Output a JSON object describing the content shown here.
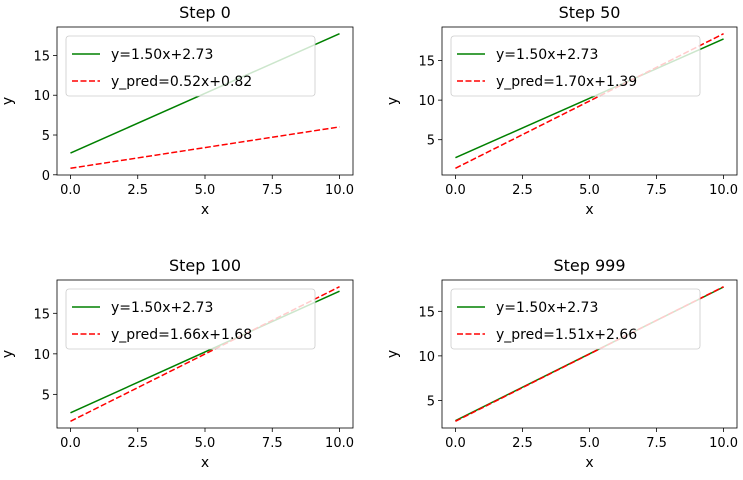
{
  "chart_data": [
    {
      "type": "line",
      "title": "Step 0",
      "xlabel": "x",
      "ylabel": "y",
      "xlim": [
        0,
        10
      ],
      "xticks": [
        "0.0",
        "2.5",
        "5.0",
        "7.5",
        "10.0"
      ],
      "yticks": [
        0,
        5,
        10,
        15
      ],
      "legend": "upper-left",
      "series": [
        {
          "name": "y=1.50x+2.73",
          "slope": 1.5,
          "intercept": 2.73,
          "color": "#008000",
          "style": "solid"
        },
        {
          "name": "y_pred=0.52x+0.82",
          "slope": 0.52,
          "intercept": 0.82,
          "color": "#ff0000",
          "style": "dashed"
        }
      ]
    },
    {
      "type": "line",
      "title": "Step 50",
      "xlabel": "x",
      "ylabel": "y",
      "xlim": [
        0,
        10
      ],
      "xticks": [
        "0.0",
        "2.5",
        "5.0",
        "7.5",
        "10.0"
      ],
      "yticks": [
        5,
        10,
        15
      ],
      "legend": "upper-left",
      "series": [
        {
          "name": "y=1.50x+2.73",
          "slope": 1.5,
          "intercept": 2.73,
          "color": "#008000",
          "style": "solid"
        },
        {
          "name": "y_pred=1.70x+1.39",
          "slope": 1.7,
          "intercept": 1.39,
          "color": "#ff0000",
          "style": "dashed"
        }
      ]
    },
    {
      "type": "line",
      "title": "Step 100",
      "xlabel": "x",
      "ylabel": "y",
      "xlim": [
        0,
        10
      ],
      "xticks": [
        "0.0",
        "2.5",
        "5.0",
        "7.5",
        "10.0"
      ],
      "yticks": [
        5,
        10,
        15
      ],
      "legend": "upper-left",
      "series": [
        {
          "name": "y=1.50x+2.73",
          "slope": 1.5,
          "intercept": 2.73,
          "color": "#008000",
          "style": "solid"
        },
        {
          "name": "y_pred=1.66x+1.68",
          "slope": 1.66,
          "intercept": 1.68,
          "color": "#ff0000",
          "style": "dashed"
        }
      ]
    },
    {
      "type": "line",
      "title": "Step 999",
      "xlabel": "x",
      "ylabel": "y",
      "xlim": [
        0,
        10
      ],
      "xticks": [
        "0.0",
        "2.5",
        "5.0",
        "7.5",
        "10.0"
      ],
      "yticks": [
        5,
        10,
        15
      ],
      "legend": "upper-left",
      "series": [
        {
          "name": "y=1.50x+2.73",
          "slope": 1.5,
          "intercept": 2.73,
          "color": "#008000",
          "style": "solid"
        },
        {
          "name": "y_pred=1.51x+2.66",
          "slope": 1.51,
          "intercept": 2.66,
          "color": "#ff0000",
          "style": "dashed"
        }
      ]
    }
  ]
}
